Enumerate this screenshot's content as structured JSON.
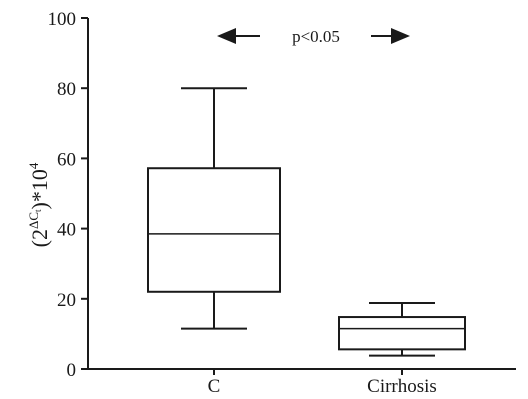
{
  "chart_data": {
    "type": "box",
    "categories": [
      "C",
      "Cirrhosis"
    ],
    "boxes": [
      {
        "category": "C",
        "min": 11.5,
        "q1": 22,
        "median": 38.5,
        "q3": 57.2,
        "max": 80
      },
      {
        "category": "Cirrhosis",
        "min": 3.8,
        "q1": 5.6,
        "median": 11.5,
        "q3": 14.8,
        "max": 18.8
      }
    ],
    "ylim": [
      0,
      100
    ],
    "yticks": [
      "0",
      "20",
      "40",
      "60",
      "80",
      "100"
    ],
    "ylabel": {
      "base": "(2",
      "sup": "ΔC",
      "subsup": "t",
      "close": ")",
      "tail": "*10",
      "tail_sup": "4"
    },
    "xlabel": "",
    "title": "",
    "annotation": "p<0.05",
    "grid": false,
    "colors": {
      "ink": "#1a1a1a",
      "background": "#ffffff"
    }
  }
}
